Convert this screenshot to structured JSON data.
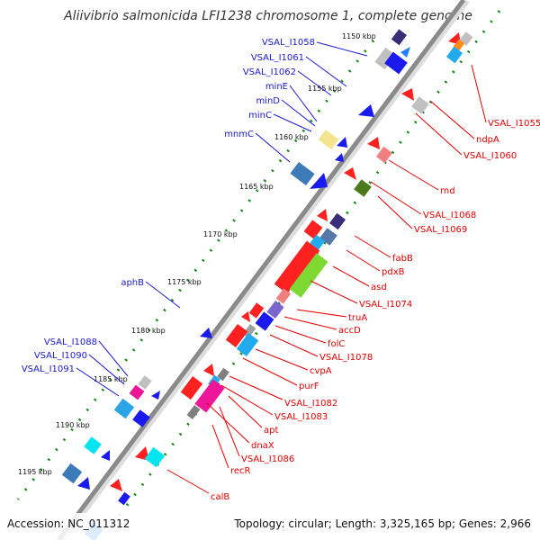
{
  "title": "Aliivibrio salmonicida LFI1238 chromosome 1, complete genome",
  "footer": {
    "accession": "Accession: NC_011312",
    "topology": "Topology: circular; Length: 3,325,165 bp; Genes: 2,966"
  },
  "colors": {
    "backbone": "#8a8a8a",
    "forward_label": "#1a1acc",
    "reverse_label": "#e00000",
    "tick": "#118811"
  },
  "kbp_markers": [
    "1150 kbp",
    "1155 kbp",
    "1160 kbp",
    "1165 kbp",
    "1170 kbp",
    "1175 kbp",
    "1180 kbp",
    "1185 kbp",
    "1190 kbp",
    "1195 kbp"
  ],
  "forward_labels": [
    "VSAL_I1058",
    "VSAL_I1061",
    "VSAL_I1062",
    "minE",
    "minD",
    "minC",
    "mnmC",
    "aphB",
    "VSAL_I1088",
    "VSAL_I1090",
    "VSAL_I1091"
  ],
  "reverse_labels": [
    "VSAL_I1055",
    "ndpA",
    "VSAL_I1060",
    "rnd",
    "VSAL_I1068",
    "VSAL_I1069",
    "fabB",
    "pdxB",
    "asd",
    "VSAL_I1074",
    "truA",
    "accD",
    "folC",
    "VSAL_I1078",
    "cvpA",
    "purF",
    "VSAL_I1082",
    "VSAL_I1083",
    "apt",
    "dnaX",
    "VSAL_I1086",
    "recR",
    "calB"
  ]
}
